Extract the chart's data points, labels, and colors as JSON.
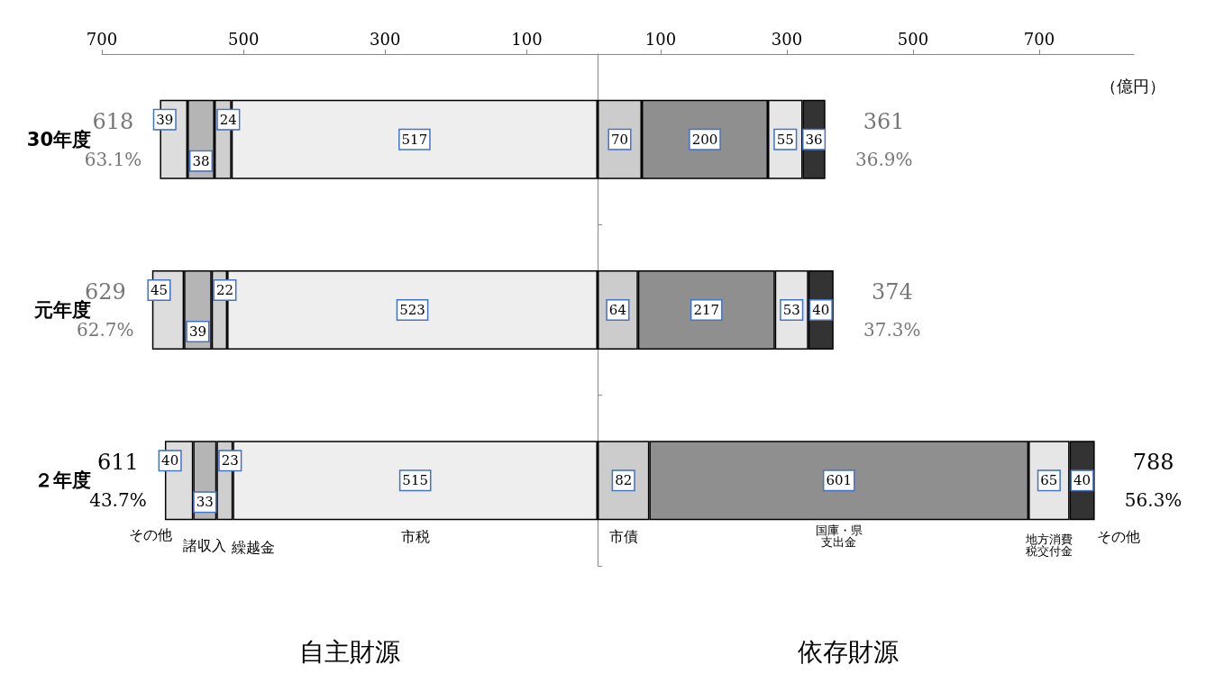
{
  "chart_data": [
    {
      "type": "bar",
      "orientation": "horizontal",
      "stacked": true,
      "categories": [
        "30年度",
        "元年度",
        "２年度"
      ],
      "xlim": [
        700,
        0
      ],
      "xticks": [
        700,
        500,
        300,
        100
      ],
      "legend": false,
      "grid": false,
      "series": [
        {
          "name": "市税",
          "color": "#eeeeee",
          "values": [
            517,
            523,
            515
          ],
          "value_labels": [
            "517",
            "523",
            "515"
          ]
        },
        {
          "name": "繰越金",
          "color": "#cfcfcf",
          "values": [
            24,
            22,
            23
          ],
          "value_labels": [
            "24",
            "22",
            "23"
          ]
        },
        {
          "name": "諸収入",
          "color": "#b5b5b5",
          "values": [
            38,
            39,
            33
          ],
          "value_labels": [
            "38",
            "39",
            "33"
          ]
        },
        {
          "name": "その他",
          "color": "#dddddd",
          "values": [
            39,
            45,
            40
          ],
          "value_labels": [
            "39",
            "45",
            "40"
          ]
        }
      ],
      "totals": [
        [
          "618",
          "63.1%"
        ],
        [
          "629",
          "62.7%"
        ],
        [
          "611",
          "43.7%"
        ]
      ],
      "annotations": [
        "自主財源"
      ]
    },
    {
      "type": "bar",
      "orientation": "horizontal",
      "stacked": true,
      "categories": [
        null,
        null,
        null
      ],
      "tick_labels": "x",
      "xlabel": "（億円）",
      "xlim": [
        0,
        850
      ],
      "xticks": [
        100,
        300,
        500,
        700
      ],
      "legend": false,
      "grid": false,
      "series": [
        {
          "name": "市債",
          "color": "#cccccc",
          "values": [
            70,
            64,
            82
          ],
          "value_labels": [
            "70",
            "64",
            "82"
          ]
        },
        {
          "name": "国庫・県支出金",
          "color": "#8f8f8f",
          "values": [
            200,
            217,
            601
          ],
          "value_labels": [
            "200",
            "217",
            "601"
          ]
        },
        {
          "name": "地方消費税交付金",
          "color": "#e6e6e6",
          "values": [
            55,
            53,
            65
          ],
          "value_labels": [
            "55",
            "53",
            "65"
          ]
        },
        {
          "name": "その他",
          "color": "#333333",
          "values": [
            36,
            40,
            40
          ],
          "value_labels": [
            "36",
            "40",
            "40"
          ]
        }
      ],
      "totals": [
        [
          "361",
          "36.9%"
        ],
        [
          "374",
          "37.3%"
        ],
        [
          "788",
          "56.3%"
        ]
      ],
      "annotations": [
        "依存財源"
      ]
    }
  ]
}
